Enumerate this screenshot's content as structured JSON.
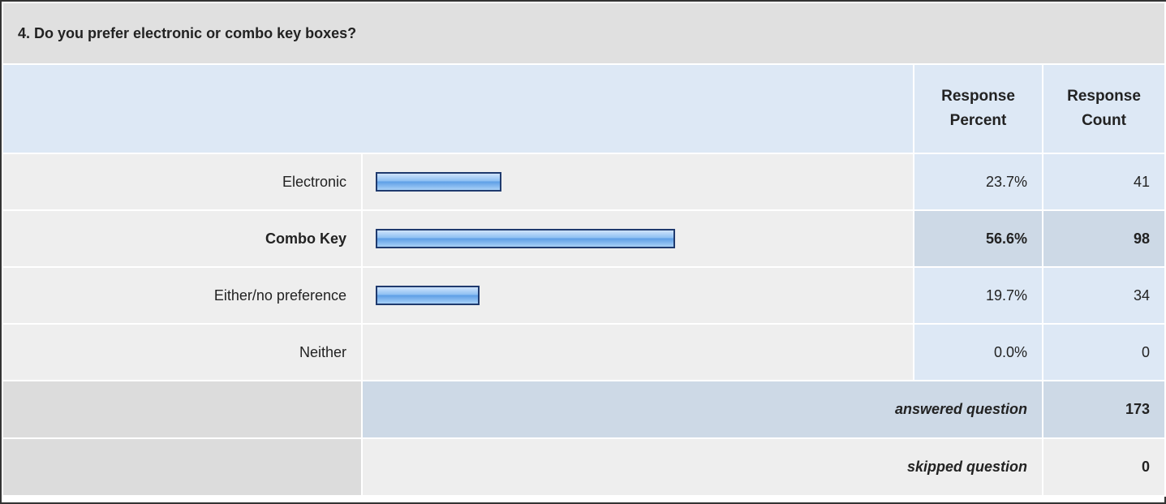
{
  "header": {
    "title": "4. Do you prefer electronic or combo key boxes?"
  },
  "table": {
    "columns": [
      "Response Percent",
      "Response Count"
    ],
    "rows": [
      {
        "label": "Electronic",
        "percent": 23.7,
        "percent_label": "23.7%",
        "count": 41
      },
      {
        "label": "Combo Key",
        "percent": 56.6,
        "percent_label": "56.6%",
        "count": 98
      },
      {
        "label": "Either/no preference",
        "percent": 19.7,
        "percent_label": "19.7%",
        "count": 34
      },
      {
        "label": "Neither",
        "percent": 0.0,
        "percent_label": "0.0%",
        "count": 0
      }
    ],
    "answered": {
      "label": "answered question",
      "count": 173
    },
    "skipped": {
      "label": "skipped question",
      "count": 0
    }
  }
}
